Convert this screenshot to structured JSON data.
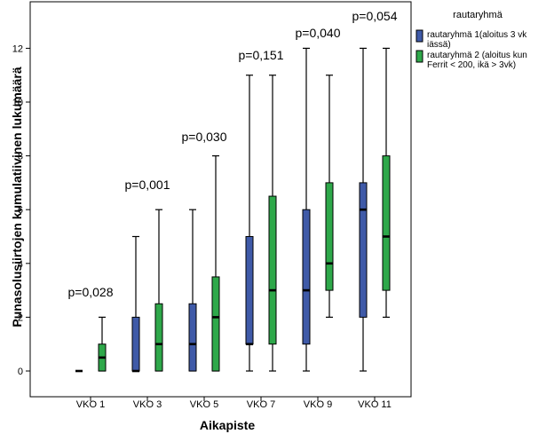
{
  "chart_data": {
    "type": "boxplot",
    "title": "",
    "xlabel": "Aikapiste",
    "ylabel": "Punasolusiirtojen kumulatiivinen lukumäärä",
    "ylim": [
      0,
      13
    ],
    "yticks": [
      0,
      2,
      4,
      6,
      8,
      10,
      12
    ],
    "grid": false,
    "legend_position": "right",
    "legend_title": "rautaryhmä",
    "categories": [
      "VKO 1",
      "VKO 3",
      "VKO 5",
      "VKO 7",
      "VKO 9",
      "VKO 11"
    ],
    "annotations": [
      "p=0,028",
      "p=0,001",
      "p=0,030",
      "p=0,151",
      "p=0,040",
      "p=0,054"
    ],
    "series": [
      {
        "name": "rautaryhmä 1(aloitus 3 vk iässä)",
        "color": "#3f5aa8",
        "boxes": [
          {
            "min": 0,
            "q1": 0,
            "median": 0,
            "q3": 0,
            "max": 0
          },
          {
            "min": 0,
            "q1": 0,
            "median": 0,
            "q3": 2,
            "max": 5
          },
          {
            "min": 0,
            "q1": 0,
            "median": 1,
            "q3": 2.5,
            "max": 6
          },
          {
            "min": 0,
            "q1": 1,
            "median": 1,
            "q3": 5,
            "max": 11
          },
          {
            "min": 0,
            "q1": 1,
            "median": 3,
            "q3": 6,
            "max": 12
          },
          {
            "min": 0,
            "q1": 2,
            "median": 6,
            "q3": 7,
            "max": 12
          }
        ]
      },
      {
        "name": "rautaryhmä 2 (aloitus kun Ferrit < 200, ikä > 3vk)",
        "color": "#2ea84a",
        "boxes": [
          {
            "min": 0,
            "q1": 0,
            "median": 0.5,
            "q3": 1,
            "max": 2
          },
          {
            "min": 0,
            "q1": 0,
            "median": 1,
            "q3": 2.5,
            "max": 6
          },
          {
            "min": 0,
            "q1": 0,
            "median": 2,
            "q3": 3.5,
            "max": 8
          },
          {
            "min": 0,
            "q1": 1,
            "median": 3,
            "q3": 6.5,
            "max": 11
          },
          {
            "min": 2,
            "q1": 3,
            "median": 4,
            "q3": 7,
            "max": 11
          },
          {
            "min": 2,
            "q1": 3,
            "median": 5,
            "q3": 8,
            "max": 12
          }
        ]
      }
    ]
  }
}
